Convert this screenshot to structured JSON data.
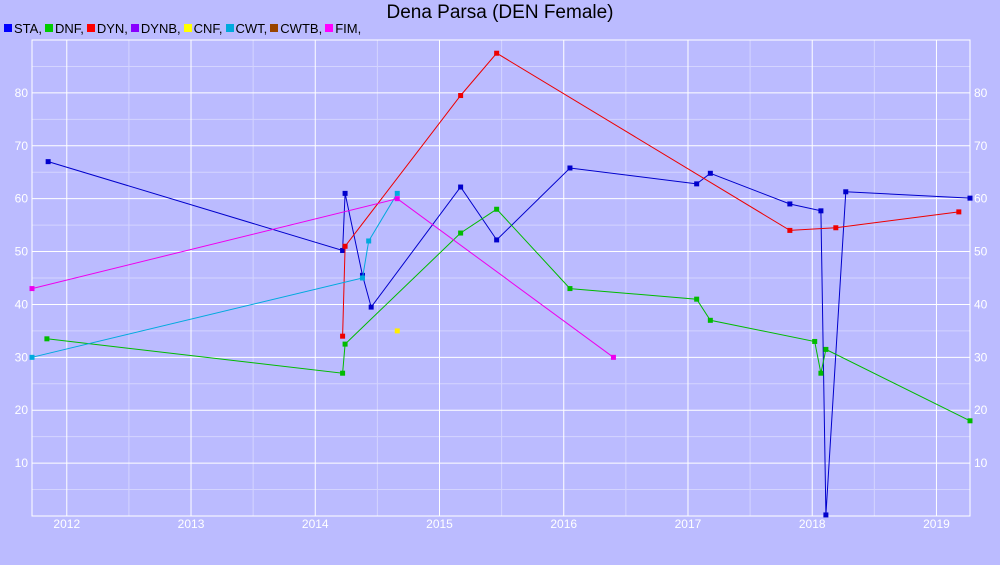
{
  "chart_data": {
    "type": "line",
    "title": "Dena Parsa (DEN Female)",
    "xlim": [
      2011.72,
      2019.27
    ],
    "ylim": [
      0,
      90
    ],
    "x_ticks": [
      2012,
      2013,
      2014,
      2015,
      2016,
      2017,
      2018,
      2019
    ],
    "y_ticks": [
      10,
      20,
      30,
      40,
      50,
      60,
      70,
      80
    ],
    "grid": true,
    "legend": "top-left",
    "series": [
      {
        "name": "STA,",
        "color": "#0000cc",
        "legend_color": "#0000ff",
        "points": [
          [
            2011.85,
            67
          ],
          [
            2014.22,
            50.2
          ],
          [
            2014.24,
            61
          ],
          [
            2014.38,
            45.5
          ],
          [
            2014.45,
            39.5
          ],
          [
            2015.17,
            62.2
          ],
          [
            2015.46,
            52.2
          ],
          [
            2016.05,
            65.8
          ],
          [
            2017.07,
            62.8
          ],
          [
            2017.18,
            64.8
          ],
          [
            2017.82,
            59
          ],
          [
            2018.07,
            57.7
          ],
          [
            2018.11,
            0.2
          ],
          [
            2018.27,
            61.3
          ],
          [
            2019.27,
            60.1
          ]
        ]
      },
      {
        "name": "DNF,",
        "color": "#00bb00",
        "legend_color": "#00cc00",
        "points": [
          [
            2011.84,
            33.5
          ],
          [
            2014.22,
            27
          ],
          [
            2014.24,
            32.5
          ],
          [
            2015.17,
            53.5
          ],
          [
            2015.46,
            58
          ],
          [
            2016.05,
            43
          ],
          [
            2017.07,
            41
          ],
          [
            2017.18,
            37
          ],
          [
            2018.02,
            33
          ],
          [
            2018.07,
            27
          ],
          [
            2018.11,
            31.5
          ],
          [
            2019.27,
            18
          ]
        ]
      },
      {
        "name": "DYN,",
        "color": "#ee0000",
        "legend_color": "#ff0000",
        "points": [
          [
            2014.22,
            34
          ],
          [
            2014.24,
            51
          ],
          [
            2015.17,
            79.5
          ],
          [
            2015.46,
            87.5
          ],
          [
            2017.82,
            54
          ],
          [
            2018.19,
            54.5
          ],
          [
            2019.18,
            57.5
          ]
        ]
      },
      {
        "name": "DYNB,",
        "color": "#8800ff",
        "legend_color": "#8800ff",
        "points": []
      },
      {
        "name": "CNF,",
        "color": "#ffee00",
        "legend_color": "#ffff00",
        "points": [
          [
            2014.66,
            35
          ]
        ]
      },
      {
        "name": "CWT,",
        "color": "#00aadd",
        "legend_color": "#00aadd",
        "points": [
          [
            2011.72,
            30
          ],
          [
            2014.38,
            45
          ],
          [
            2014.43,
            52
          ],
          [
            2014.66,
            61
          ]
        ]
      },
      {
        "name": "CWTB,",
        "color": "#994400",
        "legend_color": "#994400",
        "points": []
      },
      {
        "name": "FIM,",
        "color": "#ee00ee",
        "legend_color": "#ff00ff",
        "points": [
          [
            2011.72,
            43
          ],
          [
            2014.66,
            60
          ],
          [
            2016.4,
            30
          ]
        ]
      }
    ]
  }
}
